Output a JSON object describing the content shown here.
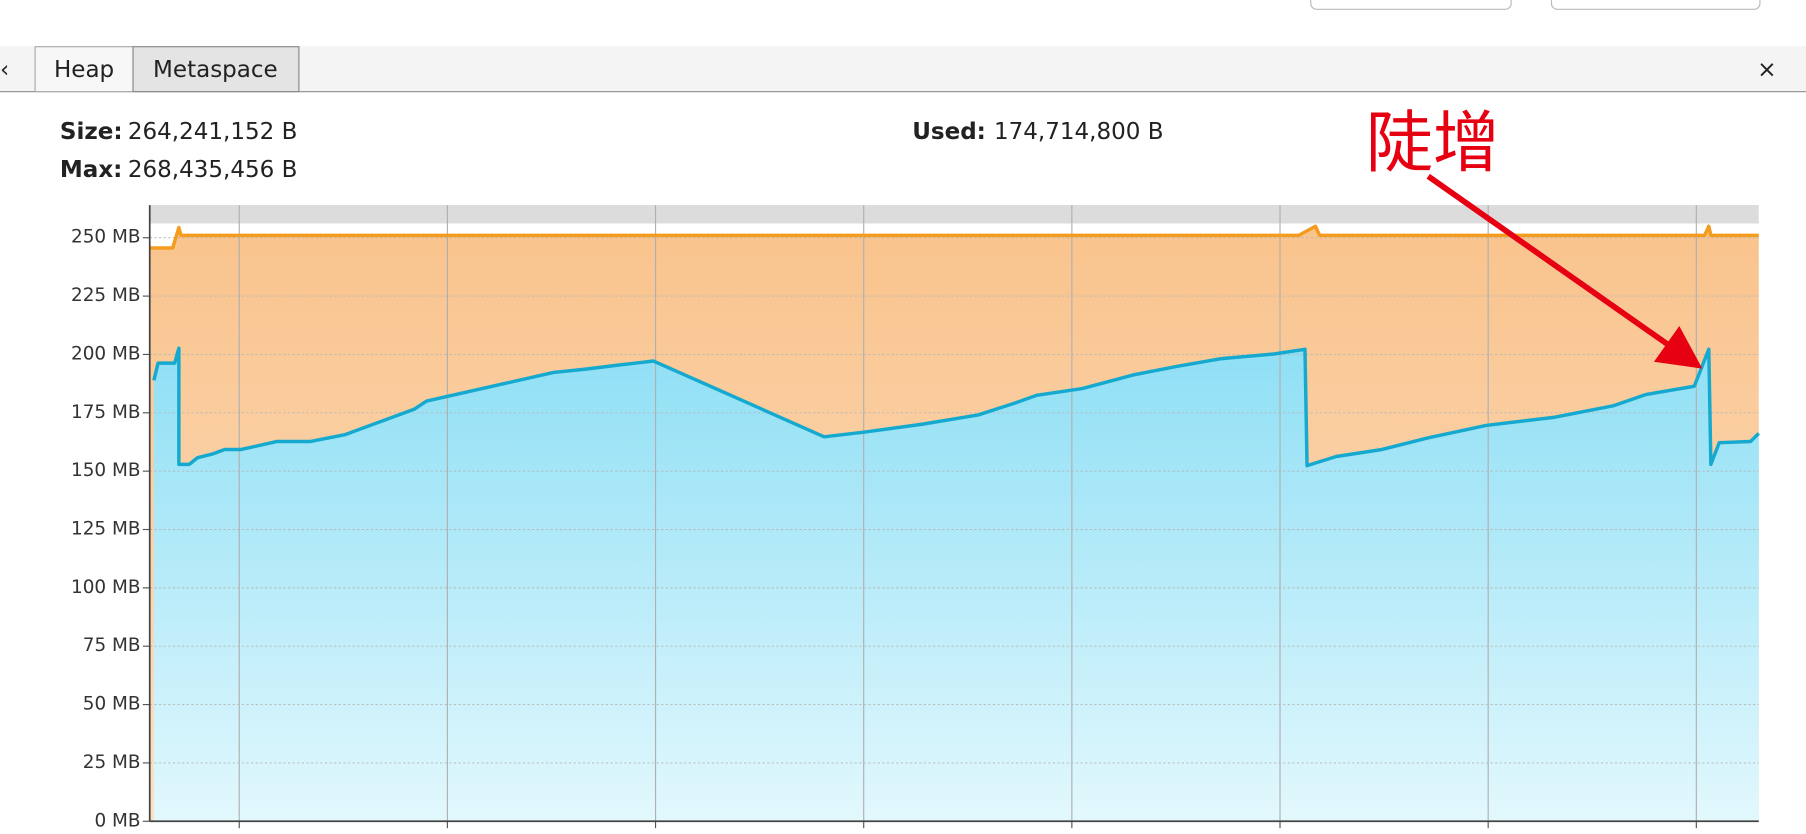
{
  "tabs": [
    "Heap",
    "Metaspace"
  ],
  "stats": [
    {
      "label": "Size:",
      "value": "264,241,152 B"
    },
    {
      "label": "Max:",
      "value": "268,435,456 B"
    },
    {
      "label": "Used:",
      "value": "174,714,800 B"
    }
  ],
  "annotation": "陡增",
  "chart_data": {
    "type": "area",
    "xlim": [
      0.57,
      8.3
    ],
    "xticks": [
      1,
      2,
      3,
      4,
      5,
      6,
      7,
      8
    ],
    "ylim": [
      0,
      264
    ],
    "yticks": [
      {
        "value": 0,
        "label": "0 MB"
      },
      {
        "value": 25,
        "label": "25 MB"
      },
      {
        "value": 50,
        "label": "50 MB"
      },
      {
        "value": 75,
        "label": "75 MB"
      },
      {
        "value": 100,
        "label": "100 MB"
      },
      {
        "value": 125,
        "label": "125 MB"
      },
      {
        "value": 150,
        "label": "150 MB"
      },
      {
        "value": 175,
        "label": "175 MB"
      },
      {
        "value": 200,
        "label": "200 MB"
      },
      {
        "value": 225,
        "label": "225 MB"
      },
      {
        "value": 250,
        "label": "250 MB"
      }
    ],
    "grid": true,
    "series": [
      {
        "color": "#f39c1f",
        "fill": "#fbcb98",
        "x": [
          0.57,
          0.68,
          0.71,
          0.72,
          6.09,
          6.17,
          6.19,
          8.04,
          8.06,
          8.07,
          8.3
        ],
        "values": [
          245.6,
          245.6,
          254.4,
          251.0,
          251.0,
          254.9,
          251.0,
          251.0,
          254.9,
          251.0,
          251.0
        ]
      },
      {
        "color": "#16a9cf",
        "fill": "#9ee5f7",
        "x": [
          0.59,
          0.61,
          0.69,
          0.71,
          0.71,
          0.76,
          0.8,
          0.87,
          0.93,
          1.01,
          1.18,
          1.34,
          1.51,
          1.84,
          1.9,
          2.51,
          2.67,
          2.81,
          2.99,
          3.81,
          4.0,
          4.28,
          4.55,
          4.72,
          4.83,
          5.05,
          5.3,
          5.5,
          5.72,
          5.97,
          6.12,
          6.13,
          6.27,
          6.49,
          6.71,
          6.99,
          7.32,
          7.6,
          7.76,
          7.99,
          8.06,
          8.07,
          8.11,
          8.26,
          8.3
        ],
        "values": [
          188.9,
          196.3,
          196.3,
          202.7,
          152.9,
          152.9,
          155.8,
          157.3,
          159.3,
          159.3,
          162.7,
          162.7,
          165.7,
          176.5,
          180.0,
          192.3,
          193.8,
          195.3,
          197.2,
          164.7,
          166.7,
          170.1,
          174.1,
          179.0,
          182.5,
          185.4,
          191.3,
          194.8,
          198.2,
          200.2,
          202.2,
          152.4,
          156.3,
          159.3,
          164.2,
          169.6,
          173.1,
          178.0,
          182.9,
          186.4,
          202.2,
          152.9,
          162.2,
          162.7,
          166.2
        ]
      }
    ]
  }
}
